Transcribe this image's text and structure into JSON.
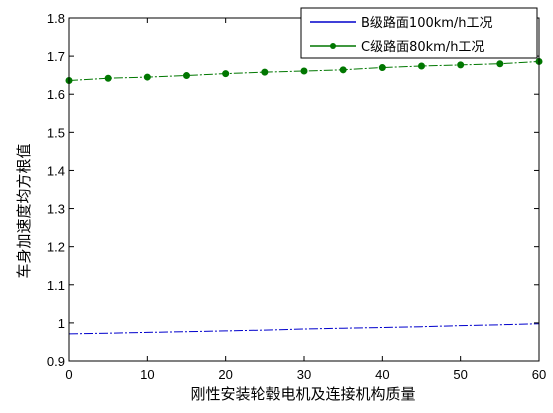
{
  "chart_data": {
    "type": "line",
    "title": "",
    "xlabel": "刚性安装轮毂电机及连接机构质量",
    "ylabel": "车身加速度均方根值",
    "xlim": [
      0,
      60
    ],
    "ylim": [
      0.9,
      1.8
    ],
    "xticks": [
      0,
      10,
      20,
      30,
      40,
      50,
      60
    ],
    "yticks": [
      0.9,
      1,
      1.1,
      1.2,
      1.3,
      1.4,
      1.5,
      1.6,
      1.7,
      1.8
    ],
    "xtick_labels": [
      "0",
      "10",
      "20",
      "30",
      "40",
      "50",
      "60"
    ],
    "ytick_labels": [
      "0.9",
      "1",
      "1.1",
      "1.2",
      "1.3",
      "1.4",
      "1.5",
      "1.6",
      "1.7",
      "1.8"
    ],
    "grid": false,
    "legend_position": "top-right",
    "series": [
      {
        "name": "B级路面100km/h工况",
        "color": "#0000cc",
        "marker": "none",
        "line_style": "dashdot",
        "x": [
          0,
          5,
          10,
          15,
          20,
          25,
          30,
          35,
          40,
          45,
          50,
          55,
          60
        ],
        "y": [
          0.971,
          0.973,
          0.975,
          0.977,
          0.979,
          0.981,
          0.984,
          0.986,
          0.988,
          0.99,
          0.993,
          0.995,
          0.998
        ]
      },
      {
        "name": "C级路面80km/h工况",
        "color": "#007700",
        "marker": "circle",
        "line_style": "dashdot",
        "x": [
          0,
          5,
          10,
          15,
          20,
          25,
          30,
          35,
          40,
          45,
          50,
          55,
          60
        ],
        "y": [
          1.636,
          1.642,
          1.645,
          1.649,
          1.654,
          1.658,
          1.661,
          1.664,
          1.67,
          1.674,
          1.677,
          1.68,
          1.686
        ]
      }
    ]
  }
}
